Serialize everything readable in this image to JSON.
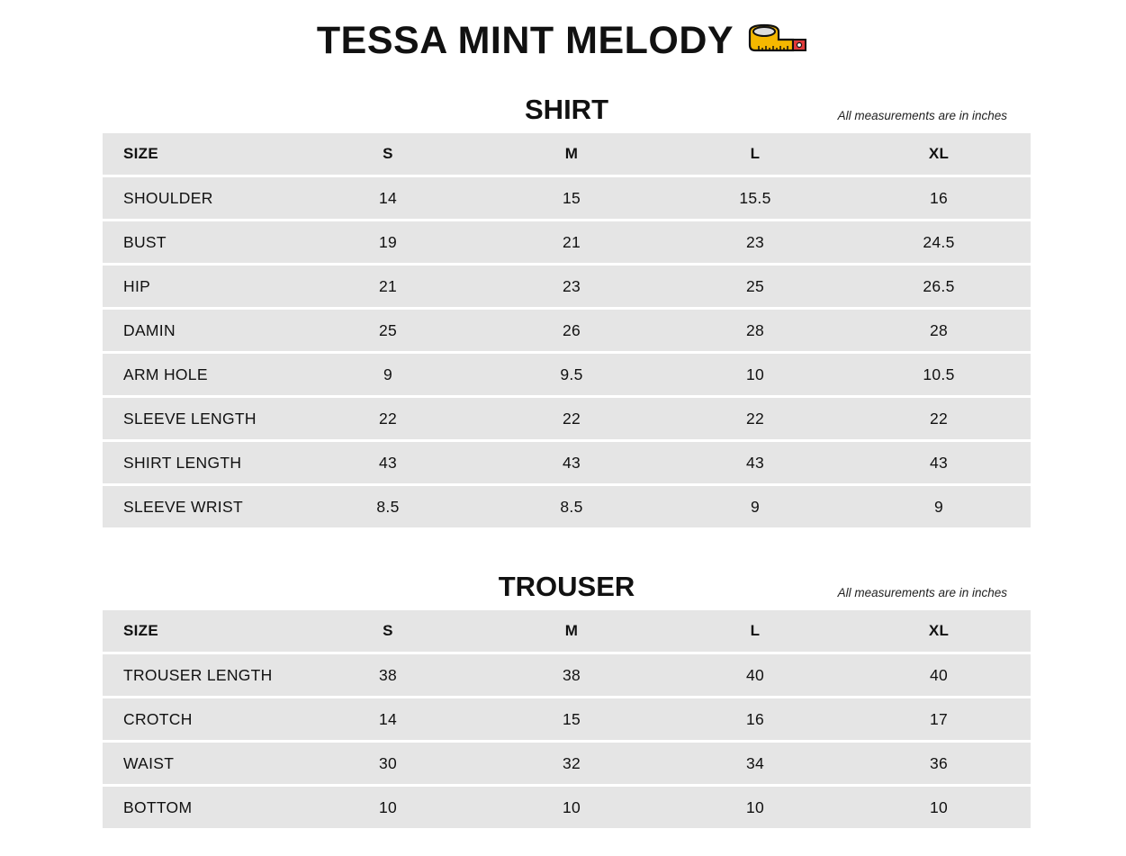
{
  "title": "TESSA MINT MELODY",
  "title_icon": "measuring-tape-icon",
  "tables": [
    {
      "key": "shirt",
      "heading": "SHIRT",
      "note": "All measurements are in inches",
      "columns": [
        "SIZE",
        "S",
        "M",
        "L",
        "XL"
      ],
      "rows": [
        [
          "SHOULDER",
          "14",
          "15",
          "15.5",
          "16"
        ],
        [
          "BUST",
          "19",
          "21",
          "23",
          "24.5"
        ],
        [
          "HIP",
          "21",
          "23",
          "25",
          "26.5"
        ],
        [
          "DAMIN",
          "25",
          "26",
          "28",
          "28"
        ],
        [
          "ARM HOLE",
          "9",
          "9.5",
          "10",
          "10.5"
        ],
        [
          "SLEEVE LENGTH",
          "22",
          "22",
          "22",
          "22"
        ],
        [
          "SHIRT LENGTH",
          "43",
          "43",
          "43",
          "43"
        ],
        [
          "SLEEVE WRIST",
          "8.5",
          "8.5",
          "9",
          "9"
        ]
      ]
    },
    {
      "key": "trouser",
      "heading": "TROUSER",
      "note": "All measurements are in inches",
      "columns": [
        "SIZE",
        "S",
        "M",
        "L",
        "XL"
      ],
      "rows": [
        [
          "TROUSER LENGTH",
          "38",
          "38",
          "40",
          "40"
        ],
        [
          "CROTCH",
          "14",
          "15",
          "16",
          "17"
        ],
        [
          "WAIST",
          "30",
          "32",
          "34",
          "36"
        ],
        [
          "BOTTOM",
          "10",
          "10",
          "10",
          "10"
        ]
      ]
    }
  ]
}
